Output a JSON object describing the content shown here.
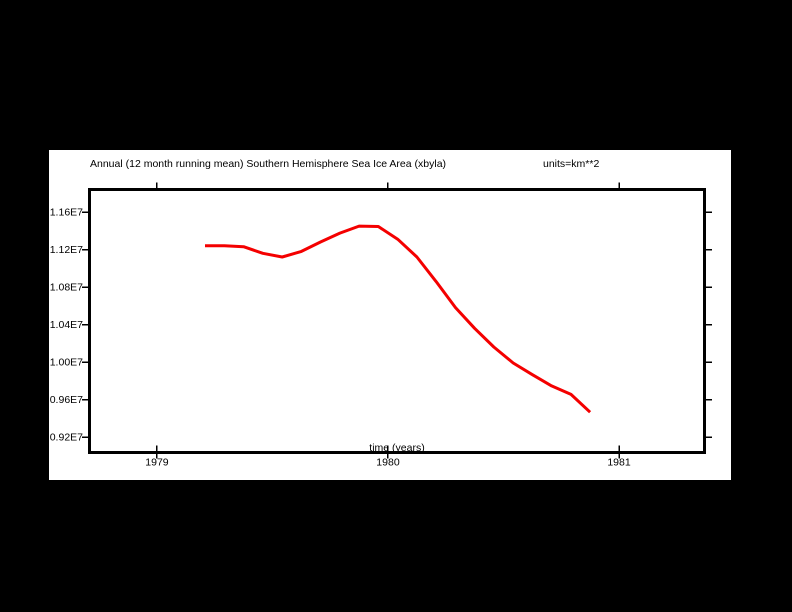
{
  "window": {
    "background_color": "#000000",
    "canvas_color": "#ffffff",
    "foreground_color": "#000000"
  },
  "chart_data": {
    "type": "line",
    "title": "Annual (12 month running mean) Southern Hemisphere Sea Ice Area (xbyla)",
    "units_label": "units=km**2",
    "xlabel": "time (years)",
    "ylabel": "",
    "grid": false,
    "legend": null,
    "xlim": [
      1978.708,
      1981.37
    ],
    "ylim": [
      9035000,
      11840000
    ],
    "x_ticks": [
      1979,
      1980,
      1981
    ],
    "x_tick_labels": [
      "1979",
      "1980",
      "1981"
    ],
    "y_ticks": [
      11600000,
      11200000,
      10800000,
      10400000,
      10000000,
      9600000,
      9200000
    ],
    "y_tick_labels": [
      "1.16E7",
      "1.12E7",
      "1.08E7",
      "1.04E7",
      "1.00E7",
      "0.96E7",
      "0.92E7"
    ],
    "series": [
      {
        "name": "Southern Hemisphere Sea Ice Area (12 month running mean)",
        "color": "#f40000",
        "x": [
          1979.208,
          1979.292,
          1979.375,
          1979.458,
          1979.542,
          1979.625,
          1979.708,
          1979.792,
          1979.875,
          1979.958,
          1980.042,
          1980.125,
          1980.208,
          1980.292,
          1980.375,
          1980.458,
          1980.542,
          1980.625,
          1980.708,
          1980.792,
          1980.875
        ],
        "y": [
          11240000,
          11240000,
          11230000,
          11160000,
          11120000,
          11180000,
          11280000,
          11375000,
          11450000,
          11445000,
          11310000,
          11120000,
          10860000,
          10580000,
          10360000,
          10160000,
          9990000,
          9865000,
          9745000,
          9655000,
          9465000
        ]
      }
    ]
  }
}
